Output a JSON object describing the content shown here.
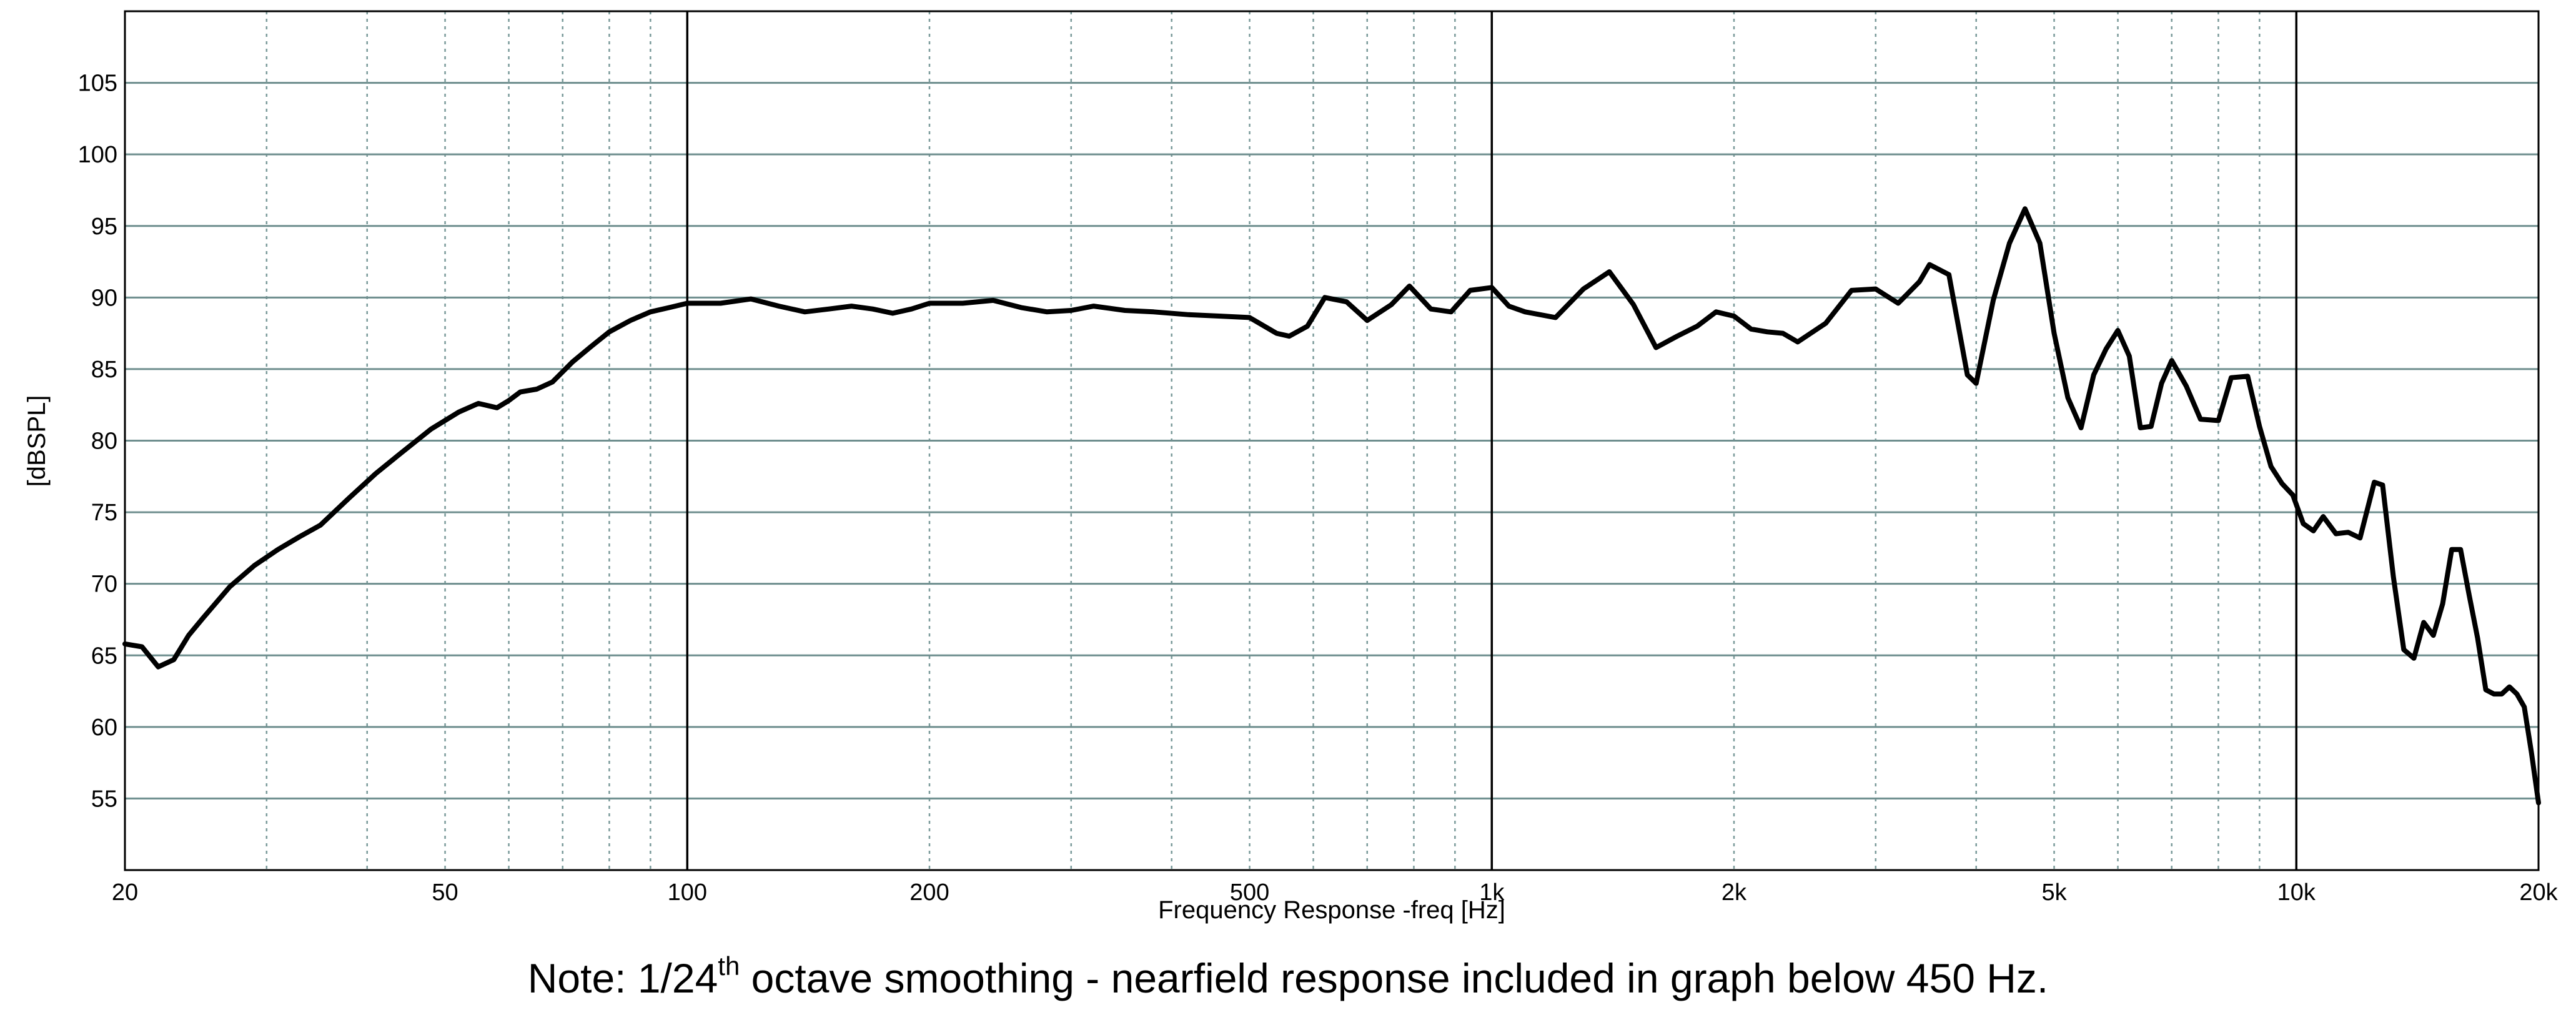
{
  "chart_data": {
    "type": "line",
    "xlabel": "Frequency Response -freq [Hz]",
    "ylabel": "[dBSPL]",
    "x_scale": "log",
    "xlim": [
      20,
      20000
    ],
    "ylim": [
      50,
      110
    ],
    "grid": true,
    "x_tick_labels": [
      {
        "value": 20,
        "label": "20"
      },
      {
        "value": 50,
        "label": "50"
      },
      {
        "value": 100,
        "label": "100"
      },
      {
        "value": 200,
        "label": "200"
      },
      {
        "value": 500,
        "label": "500"
      },
      {
        "value": 1000,
        "label": "1k"
      },
      {
        "value": 2000,
        "label": "2k"
      },
      {
        "value": 5000,
        "label": "5k"
      },
      {
        "value": 10000,
        "label": "10k"
      },
      {
        "value": 20000,
        "label": "20k"
      }
    ],
    "y_ticks": [
      55,
      60,
      65,
      70,
      75,
      80,
      85,
      90,
      95,
      100,
      105
    ],
    "series": [
      {
        "color": "#000000",
        "x": [
          20,
          21,
          22,
          23,
          24,
          25,
          27,
          29,
          31,
          33,
          35,
          38,
          41,
          44,
          48,
          52,
          55,
          58,
          60,
          62,
          65,
          68,
          72,
          76,
          80,
          85,
          90,
          95,
          100,
          110,
          120,
          130,
          140,
          150,
          160,
          170,
          180,
          190,
          200,
          220,
          240,
          260,
          280,
          300,
          320,
          350,
          380,
          420,
          460,
          500,
          540,
          560,
          590,
          620,
          660,
          700,
          750,
          790,
          840,
          890,
          940,
          1000,
          1050,
          1100,
          1200,
          1300,
          1400,
          1500,
          1600,
          1700,
          1800,
          1900,
          2000,
          2100,
          2200,
          2300,
          2400,
          2600,
          2800,
          3000,
          3200,
          3400,
          3500,
          3700,
          3900,
          4000,
          4200,
          4400,
          4600,
          4800,
          5000,
          5200,
          5400,
          5600,
          5800,
          6000,
          6200,
          6400,
          6600,
          6800,
          7000,
          7300,
          7600,
          8000,
          8300,
          8700,
          9000,
          9300,
          9600,
          9900,
          10200,
          10500,
          10800,
          11200,
          11600,
          12000,
          12500,
          12800,
          13200,
          13600,
          14000,
          14400,
          14800,
          15200,
          15600,
          16000,
          16400,
          16800,
          17200,
          17600,
          18000,
          18400,
          18800,
          19200,
          19600,
          20000
        ],
        "y": [
          65.8,
          65.6,
          64.2,
          64.7,
          66.4,
          67.6,
          69.8,
          71.3,
          72.4,
          73.3,
          74.1,
          76.0,
          77.7,
          79.1,
          80.8,
          82.0,
          82.6,
          82.3,
          82.8,
          83.4,
          83.6,
          84.1,
          85.5,
          86.6,
          87.6,
          88.4,
          89.0,
          89.3,
          89.6,
          89.6,
          89.9,
          89.4,
          89.0,
          89.2,
          89.4,
          89.2,
          88.9,
          89.2,
          89.6,
          89.6,
          89.8,
          89.3,
          89.0,
          89.1,
          89.4,
          89.1,
          89.0,
          88.8,
          88.7,
          88.6,
          87.5,
          87.3,
          88.0,
          90.0,
          89.7,
          88.4,
          89.5,
          90.8,
          89.2,
          89.0,
          90.5,
          90.7,
          89.4,
          89.0,
          88.6,
          90.6,
          91.8,
          89.5,
          86.5,
          87.3,
          88.0,
          89.0,
          88.7,
          87.8,
          87.6,
          87.5,
          86.9,
          88.2,
          90.5,
          90.6,
          89.6,
          91.1,
          92.3,
          91.6,
          84.6,
          84.0,
          89.8,
          93.8,
          96.2,
          93.8,
          87.5,
          83.0,
          80.9,
          84.6,
          86.4,
          87.7,
          85.9,
          80.9,
          81.0,
          84.0,
          85.6,
          83.8,
          81.5,
          81.4,
          84.4,
          84.5,
          81.0,
          78.2,
          77.0,
          76.2,
          74.2,
          73.7,
          74.7,
          73.5,
          73.6,
          73.2,
          77.1,
          76.9,
          70.5,
          65.4,
          64.8,
          67.3,
          66.4,
          68.6,
          72.4,
          72.4,
          69.2,
          66.2,
          62.6,
          62.3,
          62.3,
          62.8,
          62.3,
          61.4,
          58.2,
          54.7
        ]
      }
    ]
  },
  "note": {
    "before_sup": "Note: 1/24",
    "sup": "th",
    "after_sup": " octave smoothing - nearfield response included in graph below 450 Hz."
  }
}
